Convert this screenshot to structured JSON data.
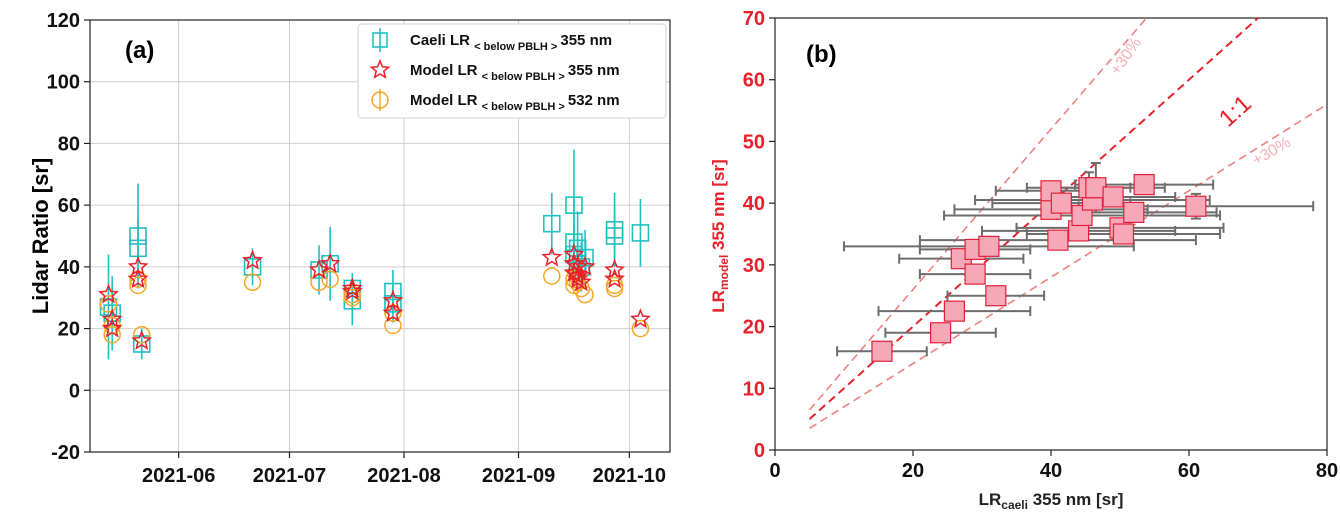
{
  "chart_data": [
    {
      "type": "scatter",
      "panel_label": "(a)",
      "xlabel": "",
      "ylabel": "Lidar Ratio [sr]",
      "ylim": [
        -20,
        120
      ],
      "yticks": [
        -20,
        0,
        20,
        40,
        60,
        80,
        100,
        120
      ],
      "xlim": [
        "2021-05-08",
        "2021-10-12"
      ],
      "xticks": [
        "2021-06",
        "2021-07",
        "2021-08",
        "2021-09",
        "2021-10"
      ],
      "grid": true,
      "legend_position": "top-right",
      "legend": [
        {
          "prefix": "Caeli LR",
          "sub": "< below PBLH >",
          "suffix": "355 nm"
        },
        {
          "prefix": "Model LR",
          "sub": "< below PBLH >",
          "suffix": "355 nm"
        },
        {
          "prefix": "Model LR",
          "sub": "< below PBLH >",
          "suffix": "532 nm"
        }
      ],
      "series": [
        {
          "name": "Caeli LR <below PBLH> 355 nm",
          "marker": "square",
          "color": "#20c0c0",
          "points": [
            {
              "x": "2021-05-13",
              "y": 27,
              "err": 17
            },
            {
              "x": "2021-05-14",
              "y": 25,
              "err": 12
            },
            {
              "x": "2021-05-21",
              "y": 50,
              "err": 17
            },
            {
              "x": "2021-05-21",
              "y": 46,
              "err": 10
            },
            {
              "x": "2021-05-22",
              "y": 15,
              "err": 5
            },
            {
              "x": "2021-06-21",
              "y": 40,
              "err": 6
            },
            {
              "x": "2021-07-09",
              "y": 39,
              "err": 8
            },
            {
              "x": "2021-07-12",
              "y": 41,
              "err": 12
            },
            {
              "x": "2021-07-18",
              "y": 29,
              "err": 8
            },
            {
              "x": "2021-07-18",
              "y": 33,
              "err": 5
            },
            {
              "x": "2021-07-29",
              "y": 32,
              "err": 7
            },
            {
              "x": "2021-07-29",
              "y": 28,
              "err": 6
            },
            {
              "x": "2021-09-10",
              "y": 54,
              "err": 10
            },
            {
              "x": "2021-09-16",
              "y": 60,
              "err": 18
            },
            {
              "x": "2021-09-16",
              "y": 48,
              "err": 14
            },
            {
              "x": "2021-09-16",
              "y": 44,
              "err": 10
            },
            {
              "x": "2021-09-17",
              "y": 46,
              "err": 12
            },
            {
              "x": "2021-09-17",
              "y": 41,
              "err": 9
            },
            {
              "x": "2021-09-18",
              "y": 40,
              "err": 8
            },
            {
              "x": "2021-09-19",
              "y": 43,
              "err": 9
            },
            {
              "x": "2021-09-27",
              "y": 52,
              "err": 12
            },
            {
              "x": "2021-09-27",
              "y": 50,
              "err": 10
            },
            {
              "x": "2021-10-04",
              "y": 51,
              "err": 11
            }
          ]
        },
        {
          "name": "Model LR <below PBLH> 355 nm",
          "marker": "star",
          "color": "#e8202a",
          "points": [
            {
              "x": "2021-05-13",
              "y": 31
            },
            {
              "x": "2021-05-14",
              "y": 23
            },
            {
              "x": "2021-05-14",
              "y": 20
            },
            {
              "x": "2021-05-21",
              "y": 40
            },
            {
              "x": "2021-05-21",
              "y": 36
            },
            {
              "x": "2021-05-22",
              "y": 16
            },
            {
              "x": "2021-06-21",
              "y": 42
            },
            {
              "x": "2021-07-09",
              "y": 39
            },
            {
              "x": "2021-07-12",
              "y": 41
            },
            {
              "x": "2021-07-18",
              "y": 33
            },
            {
              "x": "2021-07-18",
              "y": 32
            },
            {
              "x": "2021-07-29",
              "y": 29
            },
            {
              "x": "2021-07-29",
              "y": 25
            },
            {
              "x": "2021-09-10",
              "y": 43
            },
            {
              "x": "2021-09-16",
              "y": 44
            },
            {
              "x": "2021-09-16",
              "y": 41
            },
            {
              "x": "2021-09-16",
              "y": 38
            },
            {
              "x": "2021-09-17",
              "y": 40
            },
            {
              "x": "2021-09-17",
              "y": 37
            },
            {
              "x": "2021-09-17",
              "y": 36
            },
            {
              "x": "2021-09-18",
              "y": 35
            },
            {
              "x": "2021-09-19",
              "y": 40
            },
            {
              "x": "2021-09-27",
              "y": 39
            },
            {
              "x": "2021-09-27",
              "y": 36
            },
            {
              "x": "2021-10-04",
              "y": 23
            }
          ]
        },
        {
          "name": "Model LR <below PBLH> 532 nm",
          "marker": "circle",
          "color": "#f5a623",
          "points": [
            {
              "x": "2021-05-13",
              "y": 28
            },
            {
              "x": "2021-05-14",
              "y": 21
            },
            {
              "x": "2021-05-14",
              "y": 18
            },
            {
              "x": "2021-05-21",
              "y": 36
            },
            {
              "x": "2021-05-21",
              "y": 34
            },
            {
              "x": "2021-05-22",
              "y": 18
            },
            {
              "x": "2021-06-21",
              "y": 35
            },
            {
              "x": "2021-07-09",
              "y": 35
            },
            {
              "x": "2021-07-12",
              "y": 36
            },
            {
              "x": "2021-07-18",
              "y": 31
            },
            {
              "x": "2021-07-18",
              "y": 30
            },
            {
              "x": "2021-07-29",
              "y": 25
            },
            {
              "x": "2021-07-29",
              "y": 21
            },
            {
              "x": "2021-09-10",
              "y": 37
            },
            {
              "x": "2021-09-16",
              "y": 36
            },
            {
              "x": "2021-09-16",
              "y": 34
            },
            {
              "x": "2021-09-17",
              "y": 37
            },
            {
              "x": "2021-09-17",
              "y": 35
            },
            {
              "x": "2021-09-18",
              "y": 33
            },
            {
              "x": "2021-09-19",
              "y": 31
            },
            {
              "x": "2021-09-27",
              "y": 33
            },
            {
              "x": "2021-09-27",
              "y": 34
            },
            {
              "x": "2021-10-04",
              "y": 20
            }
          ]
        }
      ]
    },
    {
      "type": "scatter",
      "panel_label": "(b)",
      "xlabel": {
        "prefix": "LR",
        "sub": "caeli",
        "suffix": " 355 nm [sr]"
      },
      "ylabel": {
        "prefix": "LR",
        "sub": "model",
        "suffix": " 355 nm [sr]"
      },
      "xlim": [
        0,
        80
      ],
      "xticks": [
        0,
        20,
        40,
        60,
        80
      ],
      "ylim": [
        0,
        70
      ],
      "yticks": [
        0,
        10,
        20,
        30,
        40,
        50,
        60,
        70
      ],
      "grid": false,
      "lines": [
        {
          "label": "1:1",
          "slope": 1.0,
          "color": "#e8202a"
        },
        {
          "label": "+30%",
          "slope": 1.3,
          "color": "#f08080"
        },
        {
          "label": "+30%",
          "slope": 0.7,
          "color": "#f08080"
        }
      ],
      "marker_color": "#f7a8b8",
      "marker_edge": "#e0203a",
      "errorbar_color": "#6d6d6d",
      "points": [
        {
          "x": 15.5,
          "y": 16,
          "xerr": 6.5,
          "yerr": 0.5
        },
        {
          "x": 24,
          "y": 19,
          "xerr": 8,
          "yerr": 1
        },
        {
          "x": 26,
          "y": 22.5,
          "xerr": 11,
          "yerr": 1
        },
        {
          "x": 32,
          "y": 25,
          "xerr": 7,
          "yerr": 1
        },
        {
          "x": 27,
          "y": 31,
          "xerr": 9,
          "yerr": 1
        },
        {
          "x": 29,
          "y": 28.5,
          "xerr": 8,
          "yerr": 1
        },
        {
          "x": 29,
          "y": 32.5,
          "xerr": 8,
          "yerr": 1
        },
        {
          "x": 31,
          "y": 33,
          "xerr": 21,
          "yerr": 1
        },
        {
          "x": 41,
          "y": 34,
          "xerr": 20,
          "yerr": 1
        },
        {
          "x": 44,
          "y": 35.5,
          "xerr": 14,
          "yerr": 1
        },
        {
          "x": 40,
          "y": 39,
          "xerr": 14,
          "yerr": 1
        },
        {
          "x": 44.5,
          "y": 38,
          "xerr": 20,
          "yerr": 1
        },
        {
          "x": 50,
          "y": 36,
          "xerr": 15,
          "yerr": 1
        },
        {
          "x": 50.5,
          "y": 35,
          "xerr": 14,
          "yerr": 1
        },
        {
          "x": 52,
          "y": 38.5,
          "xerr": 12,
          "yerr": 1
        },
        {
          "x": 46,
          "y": 40.5,
          "xerr": 17,
          "yerr": 1
        },
        {
          "x": 40,
          "y": 42,
          "xerr": 8,
          "yerr": 1
        },
        {
          "x": 41.5,
          "y": 40,
          "xerr": 10,
          "yerr": 1
        },
        {
          "x": 45.5,
          "y": 42.5,
          "xerr": 6,
          "yerr": 2.5
        },
        {
          "x": 46.5,
          "y": 42.5,
          "xerr": 10,
          "yerr": 4
        },
        {
          "x": 49,
          "y": 41,
          "xerr": 9,
          "yerr": 1
        },
        {
          "x": 53.5,
          "y": 43,
          "xerr": 10,
          "yerr": 1
        },
        {
          "x": 61,
          "y": 39.5,
          "xerr": 17,
          "yerr": 2
        }
      ]
    }
  ]
}
